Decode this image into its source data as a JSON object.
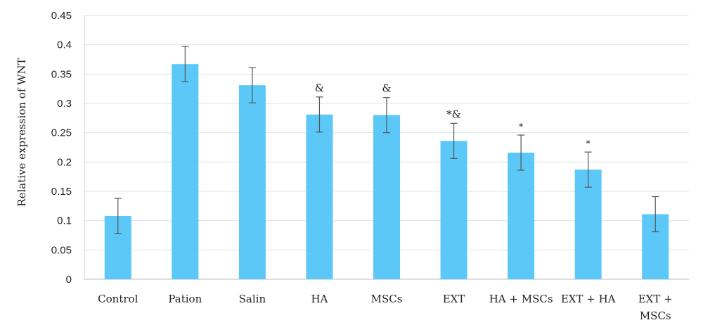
{
  "chart_data": {
    "type": "bar",
    "ylabel": "Relative expression of WNT",
    "xlabel": "",
    "ylim": [
      0,
      0.45
    ],
    "yticks": [
      0,
      0.05,
      0.1,
      0.15,
      0.2,
      0.25,
      0.3,
      0.35,
      0.4,
      0.45
    ],
    "ytick_labels": [
      "0",
      "0.05",
      "0.1",
      "0.15",
      "0.2",
      "0.25",
      "0.3",
      "0.35",
      "0.4",
      "0.45"
    ],
    "grid": true,
    "bar_color": "#5BC8F7",
    "categories": [
      [
        "Control"
      ],
      [
        "Pation"
      ],
      [
        "Salin"
      ],
      [
        "HA"
      ],
      [
        "MSCs"
      ],
      [
        "EXT"
      ],
      [
        "HA + MSCs"
      ],
      [
        "EXT + HA"
      ],
      [
        "EXT +",
        "MSCs"
      ]
    ],
    "values": [
      0.108,
      0.367,
      0.331,
      0.281,
      0.28,
      0.236,
      0.216,
      0.187,
      0.111
    ],
    "errors": [
      0.03,
      0.03,
      0.03,
      0.03,
      0.03,
      0.03,
      0.03,
      0.03,
      0.03
    ],
    "annotations": [
      "",
      "",
      "",
      "&",
      "&",
      "*&",
      "*",
      "*",
      ""
    ]
  }
}
